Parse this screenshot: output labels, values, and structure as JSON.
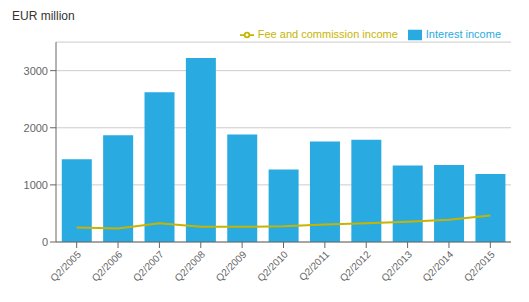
{
  "chart_data": {
    "type": "bar",
    "ylabel": "EUR million",
    "categories": [
      "Q2/2005",
      "Q2/2006",
      "Q2/2007",
      "Q2/2008",
      "Q2/2009",
      "Q2/2010",
      "Q2/2011",
      "Q2/2012",
      "Q2/2013",
      "Q2/2014",
      "Q2/2015"
    ],
    "series": [
      {
        "name": "Interest income",
        "type": "bar",
        "color": "#29ABE2",
        "values": [
          1450,
          1870,
          2620,
          3220,
          1880,
          1270,
          1760,
          1790,
          1340,
          1350,
          1190
        ]
      },
      {
        "name": "Fee and commission income",
        "type": "line",
        "color": "#C8B400",
        "values": [
          255,
          235,
          330,
          265,
          265,
          275,
          305,
          330,
          355,
          390,
          465
        ]
      }
    ],
    "ylim": [
      0,
      3500
    ],
    "yticks": [
      0,
      1000,
      2000,
      3000
    ],
    "grid": true,
    "legend": "upper right"
  }
}
